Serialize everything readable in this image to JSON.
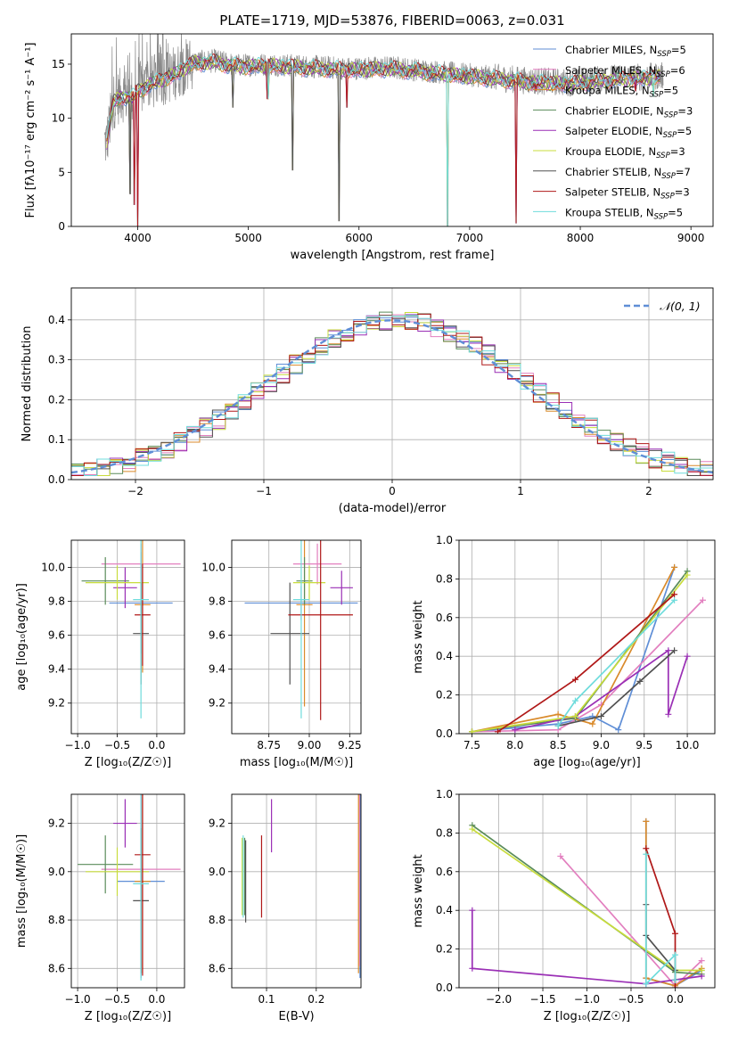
{
  "figure_title": "PLATE=1719, MJD=53876, FIBERID=0063, z=0.031",
  "colors": {
    "Chabrier MILES": "#5f8ed6",
    "Salpeter MILES": "#e27fbf",
    "Kroupa MILES": "#d98a2b",
    "Chabrier ELODIE": "#5a8c5a",
    "Salpeter ELODIE": "#9a2fb5",
    "Kroupa ELODIE": "#c8dc3c",
    "Chabrier STELIB": "#505050",
    "Salpeter STELIB": "#b01818",
    "Kroupa STELIB": "#6fdcdc",
    "data": "#8a8a8a",
    "normal_curve": "#5f8ed6"
  },
  "chart_data": [
    {
      "id": "spectrum",
      "type": "line",
      "xlabel": "wavelength [Angstrom, rest frame]",
      "ylabel": "Flux [fλ10⁻¹⁷ erg cm⁻² s⁻¹ A⁻¹]",
      "xlim": [
        3400,
        9200
      ],
      "ylim": [
        0,
        17.8
      ],
      "xticks": [
        4000,
        5000,
        6000,
        7000,
        8000,
        9000
      ],
      "yticks": [
        0,
        5,
        10,
        15
      ],
      "grid": false,
      "legend_placement": "upper-right",
      "legend": [
        {
          "series": "Chabrier MILES",
          "text": "Chabrier MILES, N",
          "sub": "SSP",
          "suffix": "=5"
        },
        {
          "series": "Salpeter MILES",
          "text": "Salpeter MILES, N",
          "sub": "SSP",
          "suffix": "=6"
        },
        {
          "series": "Kroupa MILES",
          "text": "Kroupa MILES, N",
          "sub": "SSP",
          "suffix": "=5"
        },
        {
          "series": "Chabrier ELODIE",
          "text": "Chabrier ELODIE, N",
          "sub": "SSP",
          "suffix": "=3"
        },
        {
          "series": "Salpeter ELODIE",
          "text": "Salpeter ELODIE, N",
          "sub": "SSP",
          "suffix": "=5"
        },
        {
          "series": "Kroupa ELODIE",
          "text": "Kroupa ELODIE, N",
          "sub": "SSP",
          "suffix": "=3"
        },
        {
          "series": "Chabrier STELIB",
          "text": "Chabrier STELIB, N",
          "sub": "SSP",
          "suffix": "=7"
        },
        {
          "series": "Salpeter STELIB",
          "text": "Salpeter STELIB, N",
          "sub": "SSP",
          "suffix": "=3"
        },
        {
          "series": "Kroupa STELIB",
          "text": "Kroupa STELIB, N",
          "sub": "SSP",
          "suffix": "=5"
        }
      ],
      "continuum": [
        [
          3720,
          7.8
        ],
        [
          3780,
          11.5
        ],
        [
          3850,
          12.2
        ],
        [
          3950,
          12.0
        ],
        [
          4000,
          12.6
        ],
        [
          4100,
          13.2
        ],
        [
          4300,
          14.0
        ],
        [
          4500,
          15.2
        ],
        [
          4700,
          15.3
        ],
        [
          4900,
          14.9
        ],
        [
          5200,
          15.0
        ],
        [
          5500,
          14.8
        ],
        [
          5900,
          14.6
        ],
        [
          6300,
          14.7
        ],
        [
          6700,
          14.3
        ],
        [
          7100,
          13.9
        ],
        [
          7500,
          13.5
        ],
        [
          7900,
          13.3
        ],
        [
          8300,
          13.7
        ],
        [
          8700,
          13.9
        ]
      ],
      "dips": [
        [
          3934,
          3.0
        ],
        [
          3969,
          2.0
        ],
        [
          4000,
          0.0
        ],
        [
          4861,
          11.0
        ],
        [
          5175,
          11.8
        ],
        [
          5400,
          5.2
        ],
        [
          5820,
          0.5
        ],
        [
          5892,
          11.0
        ],
        [
          6800,
          0.0
        ],
        [
          7420,
          0.3
        ],
        [
          7600,
          12.5
        ],
        [
          8500,
          12.5
        ],
        [
          8660,
          12.0
        ]
      ],
      "data_x_range": [
        3700,
        8750
      ],
      "model_x_range": [
        3720,
        8720
      ]
    },
    {
      "id": "residuals",
      "type": "histogram",
      "xlabel": "(data-model)/error",
      "ylabel": "Normed distribution",
      "xlim": [
        -2.5,
        2.5
      ],
      "ylim": [
        0,
        0.48
      ],
      "xticks": [
        -2,
        -1,
        0,
        1,
        2
      ],
      "yticks": [
        0.0,
        0.1,
        0.2,
        0.3,
        0.4
      ],
      "grid": true,
      "legend_placement": "upper-right",
      "legend_label": "𝒩(0, 1)",
      "bin_width": 0.1,
      "bin_start": -2.5
    },
    {
      "id": "age_vs_Z",
      "type": "errorbar",
      "xlabel": "Z [log₁₀(Z/Z☉)]",
      "ylabel": "age  [log₁₀(age/yr)]",
      "xlim": [
        -1.08,
        0.35
      ],
      "ylim": [
        9.02,
        10.16
      ],
      "xticks": [
        -1.0,
        -0.5,
        0.0
      ],
      "yticks": [
        9.2,
        9.4,
        9.6,
        9.8,
        10.0
      ],
      "grid": true,
      "points": [
        {
          "series": "Chabrier MILES",
          "x": -0.2,
          "y": 9.79,
          "xerr": 0.4,
          "yerr": 0.3
        },
        {
          "series": "Salpeter MILES",
          "x": -0.2,
          "y": 10.02,
          "xerr": 0.5,
          "yerr": 0.12
        },
        {
          "series": "Kroupa MILES",
          "x": -0.18,
          "y": 9.78,
          "xerr": 0.1,
          "yerr": 0.4
        },
        {
          "series": "Chabrier ELODIE",
          "x": -0.65,
          "y": 9.92,
          "xerr": 0.3,
          "yerr": 0.14
        },
        {
          "series": "Salpeter ELODIE",
          "x": -0.4,
          "y": 9.88,
          "xerr": 0.15,
          "yerr": 0.12
        },
        {
          "series": "Kroupa ELODIE",
          "x": -0.5,
          "y": 9.91,
          "xerr": 0.4,
          "yerr": 0.1
        },
        {
          "series": "Chabrier STELIB",
          "x": -0.2,
          "y": 9.61,
          "xerr": 0.1,
          "yerr": 0.3
        },
        {
          "series": "Salpeter STELIB",
          "x": -0.18,
          "y": 9.72,
          "xerr": 0.1,
          "yerr": 0.3
        },
        {
          "series": "Kroupa STELIB",
          "x": -0.2,
          "y": 9.81,
          "xerr": 0.1,
          "yerr": 0.7
        }
      ]
    },
    {
      "id": "age_vs_mass",
      "type": "errorbar",
      "xlabel": "mass [log₁₀(M/M☉)]",
      "ylabel": "",
      "xlim": [
        8.52,
        9.32
      ],
      "ylim": [
        9.02,
        10.16
      ],
      "xticks": [
        8.75,
        9.0,
        9.25
      ],
      "yticks": [
        9.2,
        9.4,
        9.6,
        9.8,
        10.0
      ],
      "grid": true,
      "points": [
        {
          "series": "Chabrier MILES",
          "x": 8.95,
          "y": 9.79,
          "xerr": 0.35,
          "yerr": 0.1
        },
        {
          "series": "Salpeter MILES",
          "x": 9.05,
          "y": 10.02,
          "xerr": 0.15,
          "yerr": 0.12
        },
        {
          "series": "Kroupa MILES",
          "x": 8.97,
          "y": 9.78,
          "xerr": 0.05,
          "yerr": 0.6
        },
        {
          "series": "Chabrier ELODIE",
          "x": 8.97,
          "y": 9.92,
          "xerr": 0.05,
          "yerr": 0.14
        },
        {
          "series": "Salpeter ELODIE",
          "x": 9.2,
          "y": 9.88,
          "xerr": 0.07,
          "yerr": 0.1
        },
        {
          "series": "Kroupa ELODIE",
          "x": 9.0,
          "y": 9.91,
          "xerr": 0.1,
          "yerr": 0.1
        },
        {
          "series": "Chabrier STELIB",
          "x": 8.88,
          "y": 9.61,
          "xerr": 0.12,
          "yerr": 0.3
        },
        {
          "series": "Salpeter STELIB",
          "x": 9.07,
          "y": 9.72,
          "xerr": 0.2,
          "yerr": 0.62
        },
        {
          "series": "Kroupa STELIB",
          "x": 8.95,
          "y": 9.81,
          "xerr": 0.05,
          "yerr": 0.7
        }
      ]
    },
    {
      "id": "weights_vs_age",
      "type": "line",
      "xlabel": "age  [log₁₀(age/yr)]",
      "ylabel": "mass weight",
      "xlim": [
        7.35,
        10.32
      ],
      "ylim": [
        0,
        1.0
      ],
      "xticks": [
        7.5,
        8.0,
        8.5,
        9.0,
        9.5,
        10.0
      ],
      "yticks": [
        0.0,
        0.2,
        0.4,
        0.6,
        0.8,
        1.0
      ],
      "grid": true,
      "series": [
        {
          "name": "Chabrier MILES",
          "points": [
            [
              7.5,
              0.01
            ],
            [
              8.5,
              0.05
            ],
            [
              8.9,
              0.09
            ],
            [
              9.2,
              0.02
            ],
            [
              9.85,
              0.86
            ]
          ]
        },
        {
          "name": "Salpeter MILES",
          "points": [
            [
              7.5,
              0.01
            ],
            [
              8.5,
              0.02
            ],
            [
              9.0,
              0.15
            ],
            [
              10.18,
              0.69
            ]
          ]
        },
        {
          "name": "Kroupa MILES",
          "points": [
            [
              7.5,
              0.01
            ],
            [
              8.5,
              0.1
            ],
            [
              8.9,
              0.05
            ],
            [
              9.85,
              0.86
            ]
          ]
        },
        {
          "name": "Chabrier ELODIE",
          "points": [
            [
              7.5,
              0.01
            ],
            [
              8.7,
              0.08
            ],
            [
              10.0,
              0.84
            ]
          ]
        },
        {
          "name": "Salpeter ELODIE",
          "points": [
            [
              8.0,
              0.02
            ],
            [
              8.7,
              0.09
            ],
            [
              9.78,
              0.43
            ],
            [
              9.78,
              0.1
            ],
            [
              10.0,
              0.4
            ]
          ]
        },
        {
          "name": "Kroupa ELODIE",
          "points": [
            [
              7.5,
              0.01
            ],
            [
              8.7,
              0.09
            ],
            [
              10.0,
              0.82
            ]
          ]
        },
        {
          "name": "Chabrier STELIB",
          "points": [
            [
              8.5,
              0.04
            ],
            [
              9.0,
              0.09
            ],
            [
              9.45,
              0.27
            ],
            [
              9.85,
              0.43
            ]
          ]
        },
        {
          "name": "Salpeter STELIB",
          "points": [
            [
              7.8,
              0.01
            ],
            [
              8.7,
              0.28
            ],
            [
              9.85,
              0.72
            ]
          ]
        },
        {
          "name": "Kroupa STELIB",
          "points": [
            [
              8.5,
              0.04
            ],
            [
              8.7,
              0.17
            ],
            [
              9.85,
              0.69
            ]
          ]
        }
      ]
    },
    {
      "id": "mass_vs_Z",
      "type": "errorbar",
      "xlabel": "Z [log₁₀(Z/Z☉)]",
      "ylabel": "mass [log₁₀(M/M☉)]",
      "xlim": [
        -1.08,
        0.35
      ],
      "ylim": [
        8.52,
        9.32
      ],
      "xticks": [
        -1.0,
        -0.5,
        0.0
      ],
      "yticks": [
        8.6,
        8.8,
        9.0,
        9.2
      ],
      "grid": true,
      "points": [
        {
          "series": "Chabrier MILES",
          "x": -0.2,
          "y": 8.96,
          "xerr": 0.3,
          "yerr": 0.4
        },
        {
          "series": "Salpeter MILES",
          "x": -0.2,
          "y": 9.01,
          "xerr": 0.5,
          "yerr": 0.4
        },
        {
          "series": "Kroupa MILES",
          "x": -0.18,
          "y": 8.96,
          "xerr": 0.1,
          "yerr": 0.38
        },
        {
          "series": "Chabrier ELODIE",
          "x": -0.65,
          "y": 9.03,
          "xerr": 0.35,
          "yerr": 0.12
        },
        {
          "series": "Salpeter ELODIE",
          "x": -0.4,
          "y": 9.2,
          "xerr": 0.15,
          "yerr": 0.1
        },
        {
          "series": "Kroupa ELODIE",
          "x": -0.5,
          "y": 9.0,
          "xerr": 0.4,
          "yerr": 0.1
        },
        {
          "series": "Chabrier STELIB",
          "x": -0.2,
          "y": 8.88,
          "xerr": 0.1,
          "yerr": 0.3
        },
        {
          "series": "Salpeter STELIB",
          "x": -0.18,
          "y": 9.07,
          "xerr": 0.1,
          "yerr": 0.5
        },
        {
          "series": "Kroupa STELIB",
          "x": -0.2,
          "y": 8.95,
          "xerr": 0.1,
          "yerr": 0.4
        }
      ]
    },
    {
      "id": "mass_vs_EBV",
      "type": "errorbar",
      "xlabel": "E(B-V)",
      "ylabel": "",
      "xlim": [
        0.03,
        0.29
      ],
      "ylim": [
        8.52,
        9.32
      ],
      "xticks": [
        0.1,
        0.2
      ],
      "yticks": [
        8.6,
        8.8,
        9.0,
        9.2
      ],
      "grid": true,
      "points": [
        {
          "series": "Chabrier MILES",
          "x": 0.288,
          "y": 8.96,
          "xerr": 0.0,
          "yerr": 0.4
        },
        {
          "series": "Salpeter MILES",
          "x": 0.287,
          "y": 9.01,
          "xerr": 0.0,
          "yerr": 0.4
        },
        {
          "series": "Kroupa MILES",
          "x": 0.285,
          "y": 8.96,
          "xerr": 0.0,
          "yerr": 0.38
        },
        {
          "series": "Chabrier ELODIE",
          "x": 0.056,
          "y": 8.98,
          "xerr": 0.0,
          "yerr": 0.16
        },
        {
          "series": "Salpeter ELODIE",
          "x": 0.11,
          "y": 9.19,
          "xerr": 0.0,
          "yerr": 0.11
        },
        {
          "series": "Kroupa ELODIE",
          "x": 0.051,
          "y": 8.98,
          "xerr": 0.0,
          "yerr": 0.16
        },
        {
          "series": "Chabrier STELIB",
          "x": 0.058,
          "y": 8.96,
          "xerr": 0.0,
          "yerr": 0.17
        },
        {
          "series": "Salpeter STELIB",
          "x": 0.09,
          "y": 8.98,
          "xerr": 0.0,
          "yerr": 0.17
        },
        {
          "series": "Kroupa STELIB",
          "x": 0.053,
          "y": 8.98,
          "xerr": 0.0,
          "yerr": 0.17
        }
      ]
    },
    {
      "id": "weights_vs_Z",
      "type": "line",
      "xlabel": "Z [log₁₀(Z/Z☉)]",
      "ylabel": "mass weight",
      "xlim": [
        -2.45,
        0.45
      ],
      "ylim": [
        0,
        1.0
      ],
      "xticks": [
        -2.0,
        -1.5,
        -1.0,
        -0.5,
        0.0
      ],
      "yticks": [
        0.0,
        0.2,
        0.4,
        0.6,
        0.8,
        1.0
      ],
      "grid": true,
      "series": [
        {
          "name": "Chabrier MILES",
          "points": [
            [
              -0.33,
              0.86
            ],
            [
              -0.33,
              0.05
            ],
            [
              0.0,
              0.01
            ],
            [
              0.3,
              0.09
            ]
          ]
        },
        {
          "name": "Salpeter MILES",
          "points": [
            [
              -1.3,
              0.68
            ],
            [
              0.0,
              0.01
            ],
            [
              0.3,
              0.14
            ]
          ]
        },
        {
          "name": "Kroupa MILES",
          "points": [
            [
              -0.33,
              0.86
            ],
            [
              -0.33,
              0.05
            ],
            [
              0.0,
              0.01
            ],
            [
              0.3,
              0.1
            ]
          ]
        },
        {
          "name": "Chabrier ELODIE",
          "points": [
            [
              -2.3,
              0.84
            ],
            [
              0.0,
              0.08
            ],
            [
              0.3,
              0.07
            ]
          ]
        },
        {
          "name": "Salpeter ELODIE",
          "points": [
            [
              -2.3,
              0.4
            ],
            [
              -2.3,
              0.1
            ],
            [
              -0.33,
              0.02
            ],
            [
              0.3,
              0.06
            ]
          ]
        },
        {
          "name": "Kroupa ELODIE",
          "points": [
            [
              -2.3,
              0.82
            ],
            [
              0.0,
              0.09
            ],
            [
              0.3,
              0.09
            ]
          ]
        },
        {
          "name": "Chabrier STELIB",
          "points": [
            [
              -0.33,
              0.43
            ],
            [
              -0.33,
              0.27
            ],
            [
              0.0,
              0.09
            ],
            [
              0.0,
              0.04
            ]
          ]
        },
        {
          "name": "Salpeter STELIB",
          "points": [
            [
              -0.33,
              0.72
            ],
            [
              0.0,
              0.28
            ],
            [
              0.0,
              0.0
            ]
          ]
        },
        {
          "name": "Kroupa STELIB",
          "points": [
            [
              -0.33,
              0.69
            ],
            [
              -0.33,
              0.02
            ],
            [
              0.0,
              0.17
            ],
            [
              0.0,
              0.04
            ]
          ]
        }
      ]
    }
  ]
}
